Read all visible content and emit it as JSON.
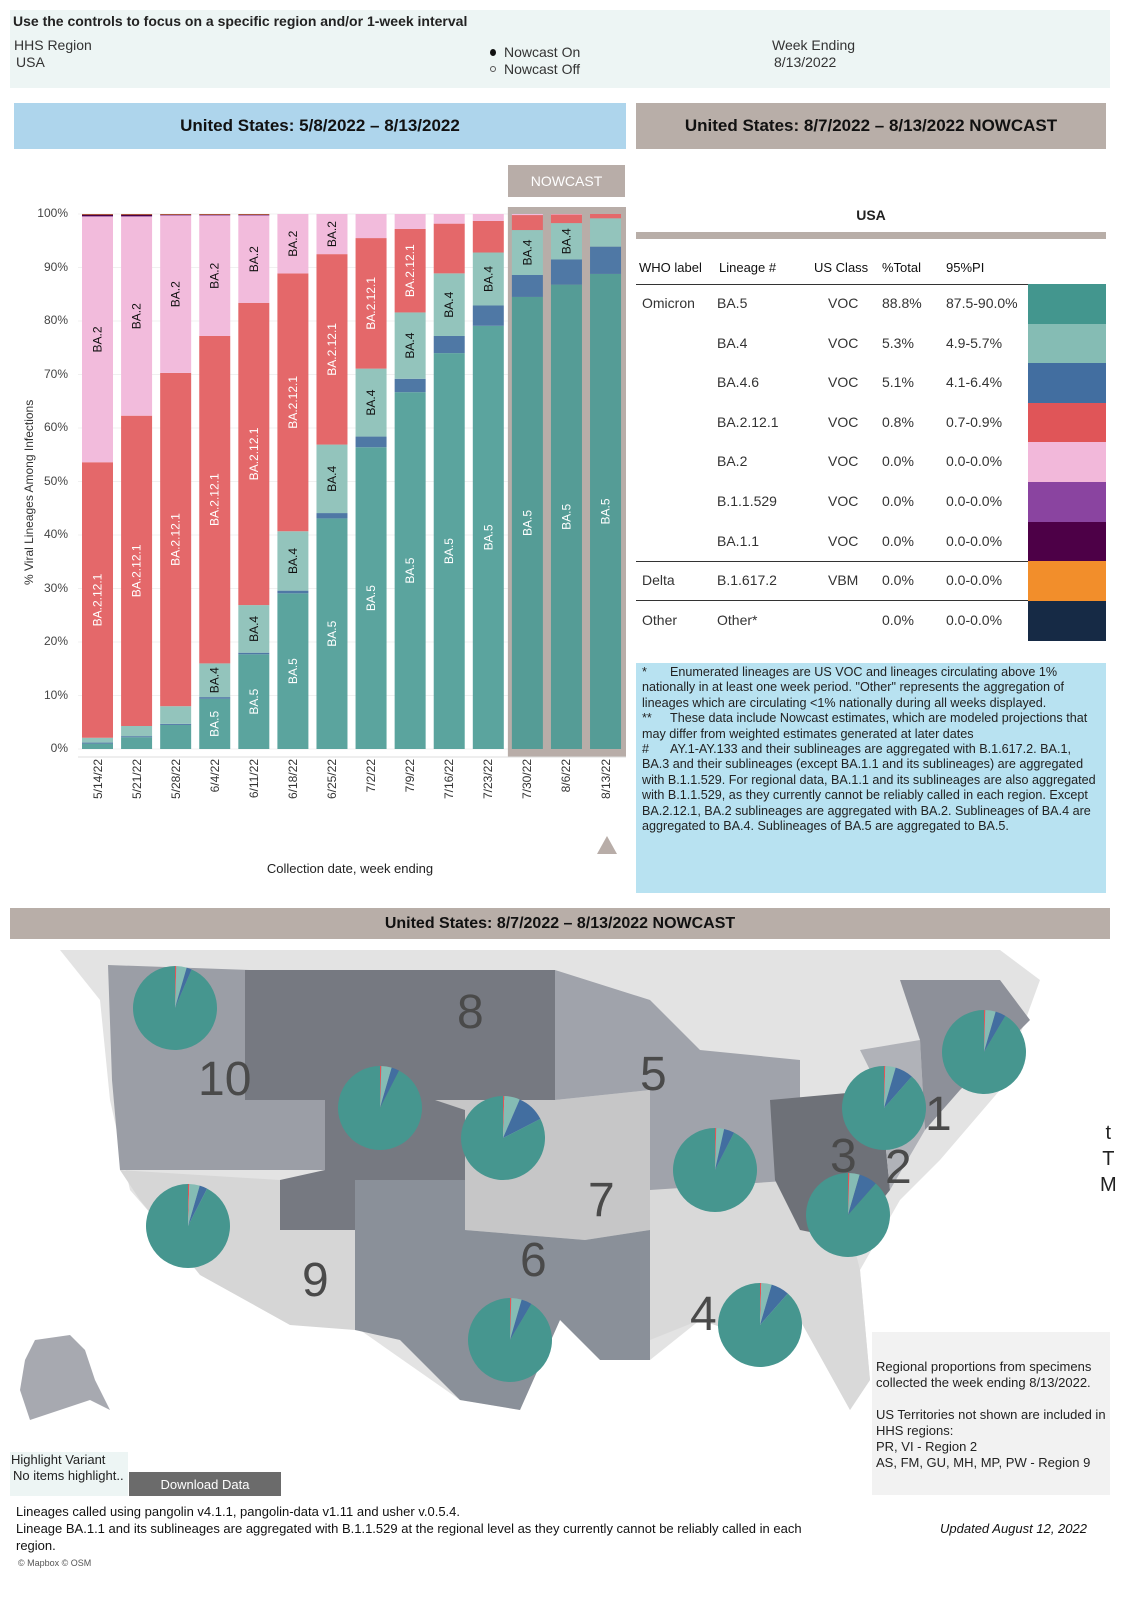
{
  "controls": {
    "instruction": "Use the controls to focus on a specific region and/or 1-week interval",
    "region_label": "HHS Region",
    "region_value": "USA",
    "nowcast_on": "Nowcast On",
    "nowcast_off": "Nowcast Off",
    "nowcast_selected": "on",
    "week_label": "Week Ending",
    "week_value": "8/13/2022"
  },
  "left_header": "United States: 5/8/2022 – 8/13/2022",
  "right_header": "United States: 8/7/2022 – 8/13/2022 NOWCAST",
  "nowcast_tag": "NOWCAST",
  "chart_data": {
    "type": "bar",
    "stacked": true,
    "ylabel": "% Viral Lineages Among Infections",
    "xlabel": "Collection date, week ending",
    "ylim": [
      0,
      100
    ],
    "yticks": [
      "0%",
      "10%",
      "20%",
      "30%",
      "40%",
      "50%",
      "60%",
      "70%",
      "80%",
      "90%",
      "100%"
    ],
    "categories": [
      "5/14/22",
      "5/21/22",
      "5/28/22",
      "6/4/22",
      "6/11/22",
      "6/18/22",
      "6/25/22",
      "7/2/22",
      "7/9/22",
      "7/16/22",
      "7/23/22",
      "7/30/22",
      "8/6/22",
      "8/13/22"
    ],
    "nowcast_categories": [
      "7/30/22",
      "8/6/22",
      "8/13/22"
    ],
    "series": [
      {
        "name": "BA.5",
        "color": "#5ba49e",
        "values": [
          1.0,
          2.2,
          4.5,
          9.4,
          17.7,
          29.1,
          43.1,
          56.4,
          66.7,
          74.0,
          79.1,
          84.5,
          86.8,
          88.8
        ]
      },
      {
        "name": "BA.4.6",
        "color": "#4f78a5",
        "values": [
          0.2,
          0.2,
          0.2,
          0.3,
          0.3,
          0.5,
          1.0,
          2.0,
          2.5,
          3.2,
          3.8,
          4.1,
          4.7,
          5.1
        ]
      },
      {
        "name": "BA.4",
        "color": "#93c4bc",
        "values": [
          0.9,
          1.9,
          3.3,
          6.3,
          8.9,
          11.1,
          12.8,
          12.7,
          12.4,
          11.7,
          9.9,
          8.4,
          6.8,
          5.3
        ]
      },
      {
        "name": "BA.2.12.1",
        "color": "#e4686a",
        "values": [
          51.5,
          58.0,
          62.3,
          61.2,
          56.5,
          48.2,
          35.6,
          24.4,
          15.6,
          9.3,
          5.9,
          2.8,
          1.6,
          0.8
        ]
      },
      {
        "name": "BA.2",
        "color": "#f2bbdc",
        "values": [
          45.9,
          37.2,
          29.4,
          22.5,
          16.3,
          11.1,
          7.5,
          4.5,
          2.8,
          1.8,
          1.3,
          0.2,
          0.1,
          0.0
        ]
      },
      {
        "name": "B.1.1.529",
        "color": "#8a3fa0",
        "values": [
          0.1,
          0.1,
          0.1,
          0.1,
          0.1,
          0,
          0,
          0,
          0,
          0,
          0,
          0,
          0,
          0
        ]
      },
      {
        "name": "BA.1.1",
        "color": "#4a0045",
        "values": [
          0.3,
          0.3,
          0.1,
          0.1,
          0.1,
          0,
          0,
          0,
          0,
          0,
          0,
          0,
          0,
          0
        ]
      },
      {
        "name": "B.1.617.2",
        "color": "#f18e2c",
        "values": [
          0.1,
          0.1,
          0.1,
          0.1,
          0.1,
          0,
          0,
          0,
          0,
          0,
          0,
          0,
          0,
          0
        ]
      }
    ]
  },
  "table": {
    "title": "USA",
    "headers": [
      "WHO label",
      "Lineage #",
      "US Class",
      "%Total",
      "95%PI"
    ],
    "rows": [
      {
        "who": "Omicron",
        "lineage": "BA.5",
        "class": "VOC",
        "total": "88.8%",
        "pi": "87.5-90.0%",
        "color": "#43968e"
      },
      {
        "who": "",
        "lineage": "BA.4",
        "class": "VOC",
        "total": "5.3%",
        "pi": "4.9-5.7%",
        "color": "#85bcb4"
      },
      {
        "who": "",
        "lineage": "BA.4.6",
        "class": "VOC",
        "total": "5.1%",
        "pi": "4.1-6.4%",
        "color": "#426ea0"
      },
      {
        "who": "",
        "lineage": "BA.2.12.1",
        "class": "VOC",
        "total": "0.8%",
        "pi": "0.7-0.9%",
        "color": "#e05558"
      },
      {
        "who": "",
        "lineage": "BA.2",
        "class": "VOC",
        "total": "0.0%",
        "pi": "0.0-0.0%",
        "color": "#f2b8da"
      },
      {
        "who": "",
        "lineage": "B.1.1.529",
        "class": "VOC",
        "total": "0.0%",
        "pi": "0.0-0.0%",
        "color": "#8a44a0"
      },
      {
        "who": "",
        "lineage": "BA.1.1",
        "class": "VOC",
        "total": "0.0%",
        "pi": "0.0-0.0%",
        "color": "#4d0047"
      },
      {
        "who": "Delta",
        "lineage": "B.1.617.2",
        "class": "VBM",
        "total": "0.0%",
        "pi": "0.0-0.0%",
        "color": "#f28e2b"
      },
      {
        "who": "Other",
        "lineage": "Other*",
        "class": "",
        "total": "0.0%",
        "pi": "0.0-0.0%",
        "color": "#162a45"
      }
    ]
  },
  "notes": [
    {
      "mark": "*",
      "text": "Enumerated lineages are US VOC and lineages circulating above 1% nationally in at least one week period. \"Other\" represents the aggregation of lineages which are circulating <1% nationally during all weeks displayed."
    },
    {
      "mark": "**",
      "text": "These data include Nowcast estimates, which are modeled projections that may differ from weighted estimates generated at later dates"
    },
    {
      "mark": "#",
      "text": "AY.1-AY.133 and their sublineages are aggregated with B.1.617.2. BA.1, BA.3 and their sublineages (except BA.1.1 and its sublineages) are aggregated with B.1.1.529. For regional data, BA.1.1 and its sublineages are also aggregated with B.1.1.529, as they currently cannot be reliably called in each region. Except BA.2.12.1, BA.2 sublineages are aggregated with BA.2. Sublineages of BA.4 are aggregated to BA.4. Sublineages of BA.5 are aggregated to BA.5."
    }
  ],
  "map": {
    "header": "United States: 8/7/2022 – 8/13/2022 NOWCAST",
    "regions": [
      "1",
      "2",
      "3",
      "4",
      "5",
      "6",
      "7",
      "8",
      "9",
      "10"
    ],
    "pie_colors": [
      "#e05558",
      "#85bcb4",
      "#426ea0",
      "#46968f"
    ],
    "pies": [
      {
        "region": "10",
        "values": [
          0.5,
          4,
          2,
          93.5
        ]
      },
      {
        "region": "9",
        "values": [
          0.5,
          4,
          3,
          92.5
        ]
      },
      {
        "region": "8",
        "values": [
          0.5,
          4,
          3,
          92.5
        ]
      },
      {
        "region": "7",
        "values": [
          0.5,
          6,
          11,
          82.5
        ]
      },
      {
        "region": "5",
        "values": [
          0.5,
          3,
          4,
          92.5
        ]
      },
      {
        "region": "6",
        "values": [
          0.5,
          4,
          4,
          91.5
        ]
      },
      {
        "region": "4",
        "values": [
          0.5,
          4,
          7,
          88.5
        ]
      },
      {
        "region": "2",
        "values": [
          0.5,
          4,
          7,
          88.5
        ]
      },
      {
        "region": "3",
        "values": [
          0.5,
          4,
          7,
          88.5
        ]
      },
      {
        "region": "1",
        "values": [
          0.5,
          4,
          4,
          91.5
        ]
      }
    ],
    "info1": "Regional proportions from specimens collected the week ending 8/13/2022.",
    "info2": "US Territories not shown are included in HHS regions:",
    "info3": "PR, VI - Region 2",
    "info4": "AS, FM, GU, MH, MP, PW - Region 9",
    "edge_text": [
      "t",
      "T",
      "M"
    ],
    "credit": "© Mapbox © OSM"
  },
  "highlight": {
    "label": "Highlight Variant",
    "value": "No items highlight.."
  },
  "download_label": "Download Data",
  "footer": {
    "line1": "Lineages called using pangolin v4.1.1, pangolin-data v1.11 and usher v.0.5.4.",
    "line2": "Lineage BA.1.1 and its sublineages are aggregated with B.1.1.529 at the regional level as they currently cannot be reliably called in each",
    "line3": "region.",
    "updated": "Updated August 12, 2022"
  }
}
